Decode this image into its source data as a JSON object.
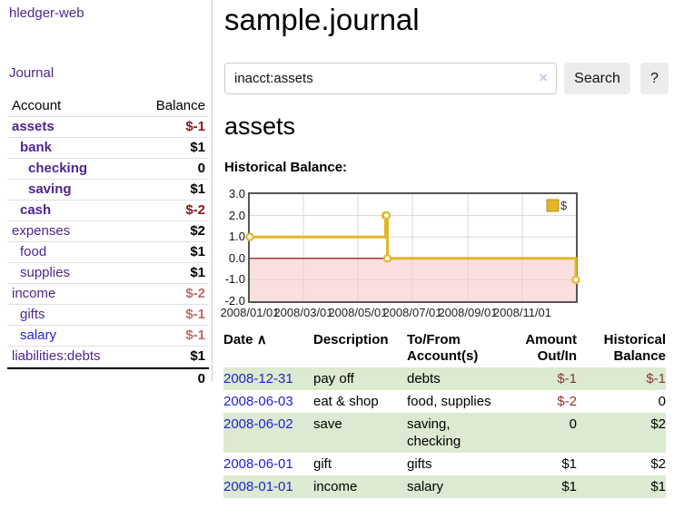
{
  "brand": "hledger-web",
  "nav": {
    "journal": "Journal"
  },
  "sidebar": {
    "headers": {
      "account": "Account",
      "balance": "Balance"
    },
    "accounts": [
      {
        "name": "assets",
        "indent": 1,
        "in_query": true,
        "balance": "$-1",
        "neg": "strong",
        "link_style": "purple"
      },
      {
        "name": "bank",
        "indent": 2,
        "in_query": true,
        "balance": "$1",
        "neg": "none",
        "link_style": "purple"
      },
      {
        "name": "checking",
        "indent": 3,
        "in_query": true,
        "balance": "0",
        "neg": "none",
        "link_style": "purple"
      },
      {
        "name": "saving",
        "indent": 3,
        "in_query": true,
        "balance": "$1",
        "neg": "none",
        "link_style": "purple"
      },
      {
        "name": "cash",
        "indent": 2,
        "in_query": true,
        "balance": "$-2",
        "neg": "strong",
        "link_style": "purple"
      },
      {
        "name": "expenses",
        "indent": 1,
        "in_query": false,
        "balance": "$2",
        "neg": "none",
        "link_style": "purple"
      },
      {
        "name": "food",
        "indent": 2,
        "in_query": false,
        "balance": "$1",
        "neg": "none",
        "link_style": "purple"
      },
      {
        "name": "supplies",
        "indent": 2,
        "in_query": false,
        "balance": "$1",
        "neg": "none",
        "link_style": "purple"
      },
      {
        "name": "income",
        "indent": 1,
        "in_query": false,
        "balance": "$-2",
        "neg": "dim",
        "link_style": "purple"
      },
      {
        "name": "gifts",
        "indent": 2,
        "in_query": false,
        "balance": "$-1",
        "neg": "dim",
        "link_style": "purple"
      },
      {
        "name": "salary",
        "indent": 2,
        "in_query": false,
        "balance": "$-1",
        "neg": "dim",
        "link_style": "blue"
      },
      {
        "name": "liabilities:debts",
        "indent": 1,
        "in_query": false,
        "balance": "$1",
        "neg": "none",
        "link_style": "purple"
      }
    ],
    "total": "0"
  },
  "main": {
    "title": "sample.journal",
    "search": {
      "value": "inacct:assets",
      "clear_label": "×",
      "search_button": "Search",
      "help_button": "?"
    },
    "account_heading": "assets",
    "chart_title": "Historical Balance:"
  },
  "chart_data": {
    "type": "line",
    "step": true,
    "title": "Historical Balance",
    "series": [
      {
        "name": "$",
        "color": "#e3b62a",
        "points": [
          {
            "date": "2008-01-01",
            "value": 1
          },
          {
            "date": "2008-06-01",
            "value": 2
          },
          {
            "date": "2008-06-02",
            "value": 2
          },
          {
            "date": "2008-06-03",
            "value": 0
          },
          {
            "date": "2008-12-31",
            "value": -1
          }
        ]
      }
    ],
    "ylim": [
      -2,
      3
    ],
    "yticks": [
      "3.0",
      "2.0",
      "1.0",
      "0.0",
      "-1.0",
      "-2.0"
    ],
    "xticks": [
      {
        "label": "2008/01/01",
        "day": 0
      },
      {
        "label": "2008/03/01",
        "day": 60
      },
      {
        "label": "2008/05/01",
        "day": 121
      },
      {
        "label": "2008/07/01",
        "day": 182
      },
      {
        "label": "2008/09/01",
        "day": 244
      },
      {
        "label": "2008/11/01",
        "day": 305
      }
    ],
    "x_range_days": 365,
    "grid": true,
    "legend": {
      "label": "$",
      "position": "top-right"
    },
    "negative_fill": "#f6caca",
    "zero_line_color": "#8b0000",
    "grid_color": "#d7d7d7"
  },
  "register": {
    "headers": {
      "date": "Date",
      "sort_arrow": "∧",
      "description": "Description",
      "accounts": "To/From Account(s)",
      "amount": "Amount Out/In",
      "balance": "Historical Balance"
    },
    "rows": [
      {
        "date": "2008-12-31",
        "description": "pay off",
        "accounts": "debts",
        "amount": "$-1",
        "amount_neg": true,
        "balance": "$-1",
        "balance_neg": true
      },
      {
        "date": "2008-06-03",
        "description": "eat & shop",
        "accounts": "food, supplies",
        "amount": "$-2",
        "amount_neg": true,
        "balance": "0",
        "balance_neg": false
      },
      {
        "date": "2008-06-02",
        "description": "save",
        "accounts": "saving, checking",
        "amount": "0",
        "amount_neg": false,
        "balance": "$2",
        "balance_neg": false
      },
      {
        "date": "2008-06-01",
        "description": "gift",
        "accounts": "gifts",
        "amount": "$1",
        "amount_neg": false,
        "balance": "$2",
        "balance_neg": false
      },
      {
        "date": "2008-01-01",
        "description": "income",
        "accounts": "salary",
        "amount": "$1",
        "amount_neg": false,
        "balance": "$1",
        "balance_neg": false
      }
    ]
  }
}
